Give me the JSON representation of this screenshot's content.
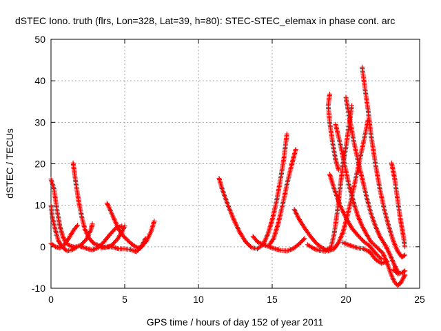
{
  "chart_data": {
    "type": "scatter",
    "title": "dSTEC Iono. truth (flrs, Lon=328, Lat=39, h=80): STEC-STEC_elemax in phase cont. arc",
    "xlabel": "GPS time / hours of day 152 of year 2011",
    "ylabel": "dSTEC  / TECUs",
    "xlim": [
      0,
      25
    ],
    "ylim": [
      -10,
      50
    ],
    "xticks": [
      0,
      5,
      10,
      15,
      20,
      25
    ],
    "yticks": [
      -10,
      0,
      10,
      20,
      30,
      40,
      50
    ],
    "xtick_labels": [
      "0",
      "5",
      "10",
      "15",
      "20",
      "25"
    ],
    "ytick_labels": [
      "-10",
      "0",
      "10",
      "20",
      "30",
      "40",
      "50"
    ],
    "grid": true,
    "legend": "none",
    "marker": "+",
    "color": "#ff0000",
    "series": [
      {
        "points": [
          [
            0.0,
            16.3
          ],
          [
            0.2,
            14
          ],
          [
            0.4,
            9
          ],
          [
            0.6,
            5
          ],
          [
            0.8,
            2.5
          ],
          [
            1.0,
            1.0
          ],
          [
            1.3,
            0.2
          ],
          [
            1.6,
            -0.1
          ],
          [
            2.0,
            0.3
          ],
          [
            2.4,
            1.8
          ],
          [
            2.7,
            4.0
          ],
          [
            2.8,
            5.5
          ]
        ]
      },
      {
        "points": [
          [
            0.0,
            10
          ],
          [
            0.1,
            7
          ],
          [
            0.3,
            4
          ],
          [
            0.5,
            1.5
          ],
          [
            0.7,
            0.2
          ],
          [
            0.9,
            -0.5
          ],
          [
            1.1,
            -1.0
          ],
          [
            1.4,
            -0.8
          ],
          [
            1.7,
            -0.2
          ]
        ]
      },
      {
        "points": [
          [
            0.0,
            0.8
          ],
          [
            0.3,
            0.0
          ],
          [
            0.6,
            -0.3
          ],
          [
            0.9,
            0.5
          ],
          [
            1.2,
            2.0
          ],
          [
            1.5,
            3.8
          ],
          [
            1.8,
            5.2
          ]
        ]
      },
      {
        "points": [
          [
            1.5,
            20.2
          ],
          [
            1.7,
            15
          ],
          [
            1.9,
            10.5
          ],
          [
            2.1,
            7
          ],
          [
            2.3,
            4.2
          ],
          [
            2.6,
            2.0
          ],
          [
            2.9,
            0.8
          ],
          [
            3.3,
            0.2
          ],
          [
            3.7,
            -0.2
          ],
          [
            4.1,
            0.3
          ],
          [
            4.5,
            1.8
          ],
          [
            4.8,
            3.5
          ],
          [
            5.0,
            5.0
          ]
        ]
      },
      {
        "points": [
          [
            2.0,
            0.1
          ],
          [
            2.4,
            -0.4
          ],
          [
            2.8,
            -0.8
          ],
          [
            3.2,
            -0.2
          ],
          [
            3.6,
            1.2
          ],
          [
            4.0,
            3.0
          ],
          [
            4.4,
            4.5
          ],
          [
            4.8,
            5.0
          ]
        ]
      },
      {
        "points": [
          [
            3.8,
            10.5
          ],
          [
            4.0,
            9
          ],
          [
            4.3,
            6.5
          ],
          [
            4.6,
            4.2
          ],
          [
            4.9,
            2.6
          ],
          [
            5.3,
            1.2
          ],
          [
            5.6,
            0.3
          ],
          [
            5.9,
            -0.3
          ],
          [
            6.2,
            0.2
          ],
          [
            6.5,
            1.5
          ],
          [
            6.8,
            3.8
          ],
          [
            7.0,
            6.2
          ]
        ]
      },
      {
        "points": [
          [
            3.4,
            -0.3
          ],
          [
            3.8,
            0.0
          ],
          [
            4.2,
            -0.1
          ],
          [
            4.6,
            -0.5
          ],
          [
            5.0,
            -0.5
          ],
          [
            5.4,
            -0.7
          ],
          [
            5.8,
            -1.2
          ],
          [
            6.1,
            -0.2
          ],
          [
            6.4,
            2.0
          ]
        ]
      },
      {
        "points": [
          [
            11.4,
            16.5
          ],
          [
            11.6,
            14
          ],
          [
            12.0,
            10
          ],
          [
            12.4,
            6.5
          ],
          [
            12.8,
            3.5
          ],
          [
            13.2,
            1.2
          ],
          [
            13.6,
            -0.2
          ],
          [
            14.0,
            -0.5
          ],
          [
            14.4,
            0.6
          ],
          [
            14.7,
            3.0
          ],
          [
            15.0,
            6.5
          ],
          [
            15.3,
            11
          ],
          [
            15.6,
            17
          ],
          [
            15.8,
            21.5
          ],
          [
            16.0,
            27.2
          ]
        ]
      },
      {
        "points": [
          [
            13.7,
            2.5
          ],
          [
            14.0,
            1.2
          ],
          [
            14.4,
            0.5
          ],
          [
            14.8,
            0.0
          ],
          [
            15.2,
            -0.5
          ],
          [
            15.6,
            -0.9
          ],
          [
            16.0,
            -1.0
          ],
          [
            16.4,
            -0.5
          ],
          [
            16.8,
            0.6
          ],
          [
            17.2,
            2.0
          ]
        ]
      },
      {
        "points": [
          [
            14.8,
            0.4
          ],
          [
            15.1,
            2.0
          ],
          [
            15.4,
            5.5
          ],
          [
            15.7,
            10
          ],
          [
            16.0,
            15
          ],
          [
            16.3,
            19.5
          ],
          [
            16.6,
            23.5
          ]
        ]
      },
      {
        "points": [
          [
            16.5,
            9.0
          ],
          [
            16.8,
            6.8
          ],
          [
            17.2,
            4.5
          ],
          [
            17.6,
            2.5
          ],
          [
            18.0,
            0.8
          ],
          [
            18.4,
            -0.3
          ],
          [
            18.8,
            -1.0
          ],
          [
            19.2,
            -0.5
          ],
          [
            19.5,
            1.0
          ],
          [
            19.8,
            3.5
          ],
          [
            20.1,
            7.5
          ],
          [
            20.4,
            12
          ],
          [
            20.7,
            17
          ],
          [
            21.0,
            22
          ],
          [
            21.3,
            27
          ],
          [
            21.5,
            30.5
          ]
        ]
      },
      {
        "points": [
          [
            17.4,
            0.5
          ],
          [
            17.8,
            -0.4
          ],
          [
            18.2,
            -0.9
          ],
          [
            18.6,
            -1.1
          ],
          [
            19.0,
            0.0
          ],
          [
            19.2,
            3.0
          ],
          [
            19.4,
            8
          ],
          [
            19.6,
            14
          ],
          [
            19.8,
            20
          ],
          [
            20.0,
            24
          ],
          [
            20.2,
            29
          ],
          [
            20.4,
            34
          ]
        ]
      },
      {
        "points": [
          [
            18.9,
            36.8
          ],
          [
            18.8,
            34
          ],
          [
            18.9,
            30
          ],
          [
            19.1,
            25
          ],
          [
            19.3,
            21
          ],
          [
            19.5,
            18.5
          ]
        ]
      },
      {
        "points": [
          [
            18.9,
            17.5
          ],
          [
            19.2,
            14
          ],
          [
            19.6,
            10
          ],
          [
            20.0,
            7
          ],
          [
            20.4,
            4.5
          ],
          [
            20.8,
            2.8
          ],
          [
            21.2,
            1.3
          ],
          [
            21.6,
            0.2
          ],
          [
            22.0,
            -1.5
          ],
          [
            22.4,
            -3.0
          ]
        ]
      },
      {
        "points": [
          [
            19.3,
            29.5
          ],
          [
            19.6,
            25
          ],
          [
            19.9,
            20
          ],
          [
            20.2,
            15
          ],
          [
            20.5,
            11
          ],
          [
            20.8,
            7.5
          ],
          [
            21.1,
            5.0
          ],
          [
            21.4,
            3.0
          ],
          [
            21.7,
            1.2
          ],
          [
            22.0,
            0.2
          ],
          [
            22.4,
            -1.2
          ]
        ]
      },
      {
        "points": [
          [
            20.0,
            36
          ],
          [
            20.2,
            32
          ],
          [
            20.5,
            26
          ],
          [
            20.8,
            21
          ],
          [
            21.1,
            16.5
          ],
          [
            21.4,
            12
          ],
          [
            21.7,
            8
          ],
          [
            22.0,
            5
          ],
          [
            22.3,
            2.5
          ],
          [
            22.7,
            0.2
          ],
          [
            23.0,
            -2
          ],
          [
            23.3,
            -4.5
          ],
          [
            23.6,
            -6.5
          ]
        ]
      },
      {
        "points": [
          [
            21.1,
            43.3
          ],
          [
            21.3,
            38
          ],
          [
            21.5,
            33
          ],
          [
            21.7,
            27
          ],
          [
            22.0,
            20
          ],
          [
            22.3,
            14
          ],
          [
            22.6,
            9
          ],
          [
            22.9,
            5
          ],
          [
            23.2,
            1.5
          ],
          [
            23.5,
            -1.0
          ],
          [
            23.8,
            -2.5
          ],
          [
            24.0,
            -2.0
          ]
        ]
      },
      {
        "points": [
          [
            22.5,
            -1.5
          ],
          [
            22.8,
            -4
          ],
          [
            23.1,
            -7
          ],
          [
            23.3,
            -8.5
          ],
          [
            23.5,
            -9.3
          ],
          [
            23.7,
            -8.8
          ],
          [
            23.9,
            -7.5
          ],
          [
            24.0,
            -6.8
          ]
        ]
      },
      {
        "points": [
          [
            23.1,
            20.2
          ],
          [
            23.3,
            16.5
          ],
          [
            23.5,
            11.5
          ],
          [
            23.7,
            6.5
          ],
          [
            23.9,
            2.5
          ],
          [
            24.0,
            0.0
          ]
        ]
      },
      {
        "points": [
          [
            19.8,
            1.0
          ],
          [
            20.3,
            0.3
          ],
          [
            20.8,
            -0.3
          ],
          [
            21.2,
            -0.5
          ],
          [
            21.6,
            -1.2
          ],
          [
            22.0,
            -3.0
          ],
          [
            22.4,
            -4.0
          ],
          [
            22.8,
            -3.5
          ]
        ]
      },
      {
        "points": [
          [
            23.2,
            -5.5
          ],
          [
            23.5,
            -6.5
          ],
          [
            23.8,
            -6.3
          ],
          [
            24.0,
            -5.8
          ]
        ]
      }
    ]
  }
}
